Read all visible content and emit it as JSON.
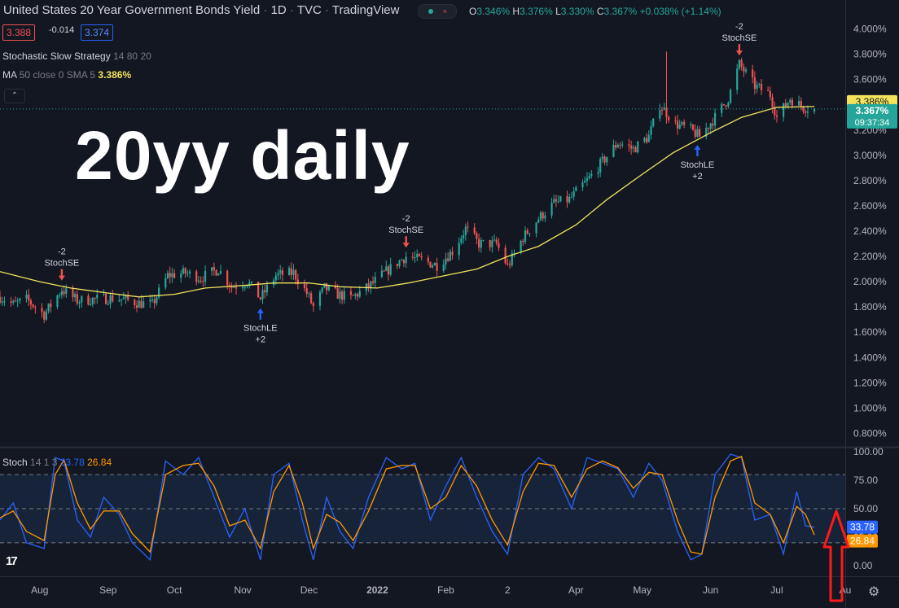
{
  "header": {
    "symbol": "United States 20 Year Government Bonds Yield",
    "interval": "1D",
    "source": "TVC",
    "platform": "TradingView",
    "ohlc": {
      "o_label": "O",
      "o": "3.346%",
      "h_label": "H",
      "h": "3.376%",
      "l_label": "L",
      "l": "3.330%",
      "c_label": "C",
      "c": "3.367%",
      "change": "+0.038% (+1.14%)"
    },
    "bid": "3.388",
    "spread": "-0.014",
    "ask": "3.374",
    "study_strategy": "Stochastic Slow Strategy",
    "study_strategy_params": "14 80 20",
    "study_ma": "MA",
    "study_ma_params": "50 close 0 SMA 5",
    "study_ma_value": "3.386%",
    "collapse_glyph": "⌃"
  },
  "annotation": "20yy daily",
  "colors": {
    "background": "#131722",
    "up": "#26a69a",
    "down": "#ef5350",
    "ma": "#f2e35b",
    "stoch_k": "#2962ff",
    "stoch_d": "#ff9800",
    "band": "#1b2d4a",
    "highlight_arrow": "#ff1a1a"
  },
  "stoch_header": {
    "name": "Stoch",
    "params": "14 1 3",
    "k_value": "33.78",
    "d_value": "26.84"
  },
  "price_labels": {
    "ma_value": "3.386%",
    "last_value": "3.367%",
    "countdown": "09:37:34"
  },
  "stoch_labels": {
    "k": "33.78",
    "d": "26.84"
  },
  "signal_labels": [
    {
      "date": "2021-08-11",
      "side": "short",
      "qty": "-2",
      "name": "StochSE"
    },
    {
      "date": "2021-11-09",
      "side": "long",
      "qty": "+2",
      "name": "StochLE"
    },
    {
      "date": "2022-01-14",
      "side": "short",
      "qty": "-2",
      "name": "StochSE"
    },
    {
      "date": "2022-05-26",
      "side": "long",
      "qty": "+2",
      "name": "StochLE"
    },
    {
      "date": "2022-06-14",
      "side": "short",
      "qty": "-2",
      "name": "StochSE"
    }
  ],
  "chart_data": [
    {
      "type": "line",
      "title": "",
      "description_series": [
        "price (candlestick)",
        "MA 50"
      ],
      "x_type": "date",
      "y_unit": "%",
      "xlim": [
        "2021-07-14",
        "2022-08-01"
      ],
      "ylim": [
        0.7,
        4.1
      ],
      "y_ticks": [
        "4.000%",
        "3.800%",
        "3.600%",
        "3.400%",
        "3.200%",
        "3.000%",
        "2.800%",
        "2.600%",
        "2.400%",
        "2.200%",
        "2.000%",
        "1.800%",
        "1.600%",
        "1.400%",
        "1.200%",
        "1.000%",
        "0.800%"
      ],
      "x_ticks": [
        {
          "date": "2021-08-01",
          "label": "Aug"
        },
        {
          "date": "2021-09-01",
          "label": "Sep"
        },
        {
          "date": "2021-10-01",
          "label": "Oct"
        },
        {
          "date": "2021-11-01",
          "label": "Nov"
        },
        {
          "date": "2021-12-01",
          "label": "Dec"
        },
        {
          "date": "2022-01-01",
          "label": "2022"
        },
        {
          "date": "2022-02-01",
          "label": "Feb"
        },
        {
          "date": "2022-03-01",
          "label": "2"
        },
        {
          "date": "2022-04-01",
          "label": "Apr"
        },
        {
          "date": "2022-05-01",
          "label": "May"
        },
        {
          "date": "2022-06-01",
          "label": "Jun"
        },
        {
          "date": "2022-07-01",
          "label": "Jul"
        },
        {
          "date": "2022-08-01",
          "label": "Au"
        }
      ],
      "price_close_path": [
        [
          "2021-07-14",
          1.88
        ],
        [
          "2021-07-20",
          1.82
        ],
        [
          "2021-07-26",
          1.86
        ],
        [
          "2021-08-03",
          1.74
        ],
        [
          "2021-08-11",
          1.94
        ],
        [
          "2021-08-18",
          1.85
        ],
        [
          "2021-08-25",
          1.86
        ],
        [
          "2021-09-02",
          1.87
        ],
        [
          "2021-09-08",
          1.86
        ],
        [
          "2021-09-15",
          1.83
        ],
        [
          "2021-09-21",
          1.82
        ],
        [
          "2021-09-28",
          2.05
        ],
        [
          "2021-10-06",
          2.07
        ],
        [
          "2021-10-13",
          2.03
        ],
        [
          "2021-10-21",
          2.1
        ],
        [
          "2021-10-27",
          1.96
        ],
        [
          "2021-11-03",
          2.0
        ],
        [
          "2021-11-09",
          1.87
        ],
        [
          "2021-11-16",
          2.05
        ],
        [
          "2021-11-24",
          2.07
        ],
        [
          "2021-11-30",
          1.91
        ],
        [
          "2021-12-03",
          1.8
        ],
        [
          "2021-12-08",
          1.95
        ],
        [
          "2021-12-14",
          1.9
        ],
        [
          "2021-12-20",
          1.87
        ],
        [
          "2021-12-28",
          1.96
        ],
        [
          "2022-01-05",
          2.08
        ],
        [
          "2022-01-10",
          2.15
        ],
        [
          "2022-01-14",
          2.2
        ],
        [
          "2022-01-21",
          2.17
        ],
        [
          "2022-01-28",
          2.13
        ],
        [
          "2022-02-04",
          2.24
        ],
        [
          "2022-02-10",
          2.42
        ],
        [
          "2022-02-16",
          2.3
        ],
        [
          "2022-02-24",
          2.3
        ],
        [
          "2022-03-01",
          2.12
        ],
        [
          "2022-03-08",
          2.35
        ],
        [
          "2022-03-15",
          2.5
        ],
        [
          "2022-03-22",
          2.62
        ],
        [
          "2022-03-29",
          2.65
        ],
        [
          "2022-04-06",
          2.8
        ],
        [
          "2022-04-13",
          2.95
        ],
        [
          "2022-04-20",
          3.1
        ],
        [
          "2022-04-27",
          3.05
        ],
        [
          "2022-05-04",
          3.15
        ],
        [
          "2022-05-09",
          3.4
        ],
        [
          "2022-05-16",
          3.25
        ],
        [
          "2022-05-23",
          3.2
        ],
        [
          "2022-05-27",
          3.15
        ],
        [
          "2022-06-03",
          3.3
        ],
        [
          "2022-06-09",
          3.45
        ],
        [
          "2022-06-14",
          3.72
        ],
        [
          "2022-06-21",
          3.55
        ],
        [
          "2022-06-28",
          3.48
        ],
        [
          "2022-07-01",
          3.3
        ],
        [
          "2022-07-07",
          3.45
        ],
        [
          "2022-07-13",
          3.38
        ],
        [
          "2022-07-18",
          3.367
        ]
      ],
      "ma_50": [
        [
          "2021-07-14",
          2.08
        ],
        [
          "2021-08-01",
          2.0
        ],
        [
          "2021-08-15",
          1.95
        ],
        [
          "2021-09-01",
          1.91
        ],
        [
          "2021-09-15",
          1.88
        ],
        [
          "2021-10-01",
          1.9
        ],
        [
          "2021-10-15",
          1.95
        ],
        [
          "2021-11-01",
          1.97
        ],
        [
          "2021-11-15",
          1.99
        ],
        [
          "2021-12-01",
          1.99
        ],
        [
          "2021-12-15",
          1.96
        ],
        [
          "2022-01-01",
          1.95
        ],
        [
          "2022-01-15",
          1.99
        ],
        [
          "2022-02-01",
          2.05
        ],
        [
          "2022-02-15",
          2.1
        ],
        [
          "2022-03-01",
          2.2
        ],
        [
          "2022-03-15",
          2.28
        ],
        [
          "2022-04-01",
          2.45
        ],
        [
          "2022-04-15",
          2.65
        ],
        [
          "2022-05-01",
          2.85
        ],
        [
          "2022-05-15",
          3.02
        ],
        [
          "2022-06-01",
          3.18
        ],
        [
          "2022-06-15",
          3.3
        ],
        [
          "2022-07-01",
          3.38
        ],
        [
          "2022-07-18",
          3.386
        ]
      ],
      "last_price": 3.367,
      "ma_last": 3.386
    },
    {
      "type": "line",
      "title": "",
      "ylim": [
        -8,
        103
      ],
      "y_ticks": [
        "100.00",
        "75.00",
        "50.00",
        "25.00",
        "0.00"
      ],
      "band": [
        20,
        80
      ],
      "series": [
        {
          "name": "Stoch %K",
          "values": [
            [
              "2021-07-14",
              40
            ],
            [
              "2021-07-20",
              55
            ],
            [
              "2021-07-26",
              20
            ],
            [
              "2021-08-03",
              15
            ],
            [
              "2021-08-08",
              95
            ],
            [
              "2021-08-12",
              92
            ],
            [
              "2021-08-18",
              40
            ],
            [
              "2021-08-24",
              25
            ],
            [
              "2021-08-30",
              60
            ],
            [
              "2021-09-06",
              45
            ],
            [
              "2021-09-12",
              20
            ],
            [
              "2021-09-20",
              5
            ],
            [
              "2021-09-27",
              92
            ],
            [
              "2021-10-05",
              80
            ],
            [
              "2021-10-12",
              95
            ],
            [
              "2021-10-19",
              60
            ],
            [
              "2021-10-26",
              25
            ],
            [
              "2021-11-02",
              50
            ],
            [
              "2021-11-09",
              5
            ],
            [
              "2021-11-15",
              80
            ],
            [
              "2021-11-22",
              90
            ],
            [
              "2021-11-28",
              40
            ],
            [
              "2021-12-03",
              5
            ],
            [
              "2021-12-09",
              60
            ],
            [
              "2021-12-15",
              30
            ],
            [
              "2021-12-21",
              15
            ],
            [
              "2021-12-28",
              60
            ],
            [
              "2022-01-05",
              95
            ],
            [
              "2022-01-12",
              85
            ],
            [
              "2022-01-18",
              90
            ],
            [
              "2022-01-25",
              40
            ],
            [
              "2022-02-01",
              70
            ],
            [
              "2022-02-08",
              95
            ],
            [
              "2022-02-15",
              60
            ],
            [
              "2022-02-22",
              30
            ],
            [
              "2022-03-01",
              10
            ],
            [
              "2022-03-08",
              80
            ],
            [
              "2022-03-15",
              95
            ],
            [
              "2022-03-22",
              85
            ],
            [
              "2022-03-30",
              50
            ],
            [
              "2022-04-06",
              95
            ],
            [
              "2022-04-13",
              90
            ],
            [
              "2022-04-20",
              85
            ],
            [
              "2022-04-27",
              60
            ],
            [
              "2022-05-04",
              90
            ],
            [
              "2022-05-10",
              75
            ],
            [
              "2022-05-17",
              30
            ],
            [
              "2022-05-23",
              5
            ],
            [
              "2022-05-28",
              10
            ],
            [
              "2022-06-03",
              80
            ],
            [
              "2022-06-10",
              98
            ],
            [
              "2022-06-15",
              95
            ],
            [
              "2022-06-21",
              40
            ],
            [
              "2022-06-28",
              45
            ],
            [
              "2022-07-04",
              10
            ],
            [
              "2022-07-10",
              65
            ],
            [
              "2022-07-14",
              35
            ],
            [
              "2022-07-18",
              33.78
            ]
          ]
        },
        {
          "name": "Stoch %D",
          "values": [
            [
              "2021-07-14",
              42
            ],
            [
              "2021-07-20",
              48
            ],
            [
              "2021-07-26",
              30
            ],
            [
              "2021-08-03",
              22
            ],
            [
              "2021-08-08",
              80
            ],
            [
              "2021-08-12",
              93
            ],
            [
              "2021-08-18",
              55
            ],
            [
              "2021-08-24",
              32
            ],
            [
              "2021-08-30",
              48
            ],
            [
              "2021-09-06",
              48
            ],
            [
              "2021-09-12",
              28
            ],
            [
              "2021-09-20",
              12
            ],
            [
              "2021-09-27",
              80
            ],
            [
              "2021-10-05",
              88
            ],
            [
              "2021-10-12",
              90
            ],
            [
              "2021-10-19",
              70
            ],
            [
              "2021-10-26",
              35
            ],
            [
              "2021-11-02",
              40
            ],
            [
              "2021-11-09",
              15
            ],
            [
              "2021-11-15",
              65
            ],
            [
              "2021-11-22",
              88
            ],
            [
              "2021-11-28",
              55
            ],
            [
              "2021-12-03",
              15
            ],
            [
              "2021-12-09",
              45
            ],
            [
              "2021-12-15",
              38
            ],
            [
              "2021-12-21",
              22
            ],
            [
              "2021-12-28",
              48
            ],
            [
              "2022-01-05",
              85
            ],
            [
              "2022-01-12",
              88
            ],
            [
              "2022-01-18",
              88
            ],
            [
              "2022-01-25",
              50
            ],
            [
              "2022-02-01",
              60
            ],
            [
              "2022-02-08",
              88
            ],
            [
              "2022-02-15",
              70
            ],
            [
              "2022-02-22",
              40
            ],
            [
              "2022-03-01",
              18
            ],
            [
              "2022-03-08",
              65
            ],
            [
              "2022-03-15",
              90
            ],
            [
              "2022-03-22",
              88
            ],
            [
              "2022-03-30",
              60
            ],
            [
              "2022-04-06",
              85
            ],
            [
              "2022-04-13",
              92
            ],
            [
              "2022-04-20",
              86
            ],
            [
              "2022-04-27",
              68
            ],
            [
              "2022-05-04",
              82
            ],
            [
              "2022-05-10",
              80
            ],
            [
              "2022-05-17",
              40
            ],
            [
              "2022-05-23",
              12
            ],
            [
              "2022-05-28",
              10
            ],
            [
              "2022-06-03",
              60
            ],
            [
              "2022-06-10",
              92
            ],
            [
              "2022-06-15",
              96
            ],
            [
              "2022-06-21",
              55
            ],
            [
              "2022-06-28",
              45
            ],
            [
              "2022-07-04",
              20
            ],
            [
              "2022-07-10",
              52
            ],
            [
              "2022-07-14",
              45
            ],
            [
              "2022-07-18",
              26.84
            ]
          ]
        }
      ]
    }
  ]
}
